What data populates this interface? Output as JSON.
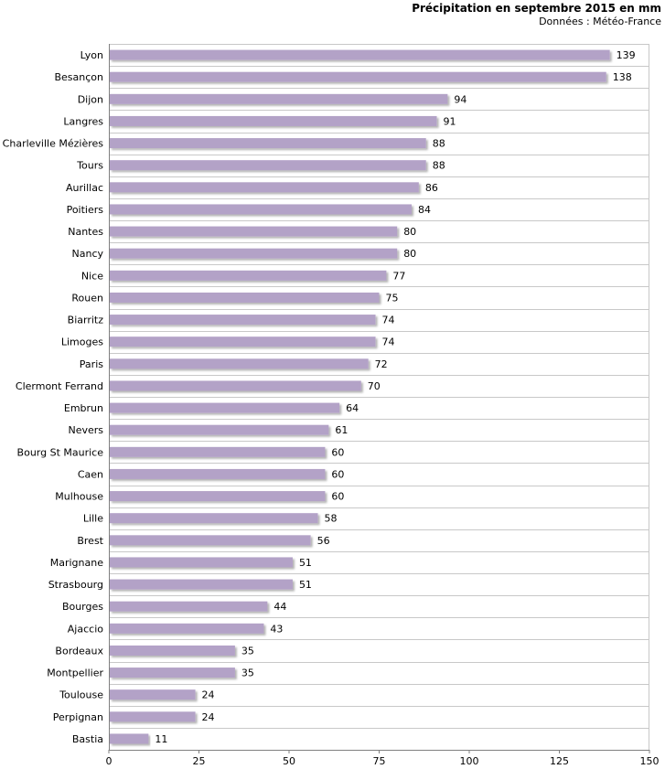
{
  "chart_data": {
    "type": "bar",
    "orientation": "horizontal",
    "title": "Précipitation en septembre 2015 en mm",
    "subtitle": "Données : Météo-France",
    "categories": [
      "Lyon",
      "Besançon",
      "Dijon",
      "Langres",
      "Charleville Mézières",
      "Tours",
      "Aurillac",
      "Poitiers",
      "Nantes",
      "Nancy",
      "Nice",
      "Rouen",
      "Biarritz",
      "Limoges",
      "Paris",
      "Clermont Ferrand",
      "Embrun",
      "Nevers",
      "Bourg St Maurice",
      "Caen",
      "Mulhouse",
      "Lille",
      "Brest",
      "Marignane",
      "Strasbourg",
      "Bourges",
      "Ajaccio",
      "Bordeaux",
      "Montpellier",
      "Toulouse",
      "Perpignan",
      "Bastia"
    ],
    "values": [
      139,
      138,
      94,
      91,
      88,
      88,
      86,
      84,
      80,
      80,
      77,
      75,
      74,
      74,
      72,
      70,
      64,
      61,
      60,
      60,
      60,
      58,
      56,
      51,
      51,
      44,
      43,
      35,
      35,
      24,
      24,
      11
    ],
    "xlim": [
      0,
      150
    ],
    "xticks": [
      "0",
      "25",
      "50",
      "75",
      "100",
      "125",
      "150"
    ],
    "grid": true,
    "bar_color": "#b3a2c7"
  }
}
